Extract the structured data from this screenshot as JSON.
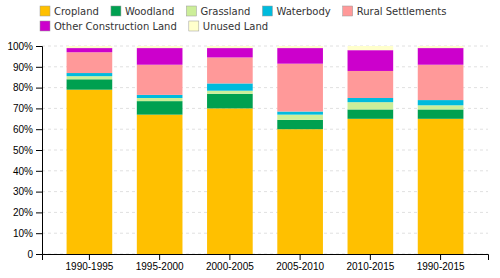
{
  "chart_data": {
    "type": "bar",
    "stacked": true,
    "categories": [
      "1990-1995",
      "1995-2000",
      "2000-2005",
      "2005-2010",
      "2010-2015",
      "1990-2015"
    ],
    "series": [
      {
        "name": "Cropland",
        "color": "#FFC000",
        "values": [
          79.0,
          67.0,
          70.0,
          60.0,
          65.0,
          65.0
        ]
      },
      {
        "name": "Woodland",
        "color": "#00A050",
        "values": [
          5.0,
          6.5,
          7.0,
          4.5,
          4.5,
          4.5
        ]
      },
      {
        "name": "Grassland",
        "color": "#CCEE99",
        "values": [
          1.5,
          1.5,
          1.5,
          2.5,
          3.5,
          2.0
        ]
      },
      {
        "name": "Waterbody",
        "color": "#00BBDD",
        "values": [
          1.5,
          1.5,
          3.5,
          1.5,
          2.0,
          2.5
        ]
      },
      {
        "name": "Rural Settlements",
        "color": "#FF9999",
        "values": [
          10.0,
          14.5,
          12.5,
          23.0,
          13.0,
          17.0
        ]
      },
      {
        "name": "Other Construction Land",
        "color": "#CC00CC",
        "values": [
          2.0,
          8.0,
          4.5,
          7.5,
          10.0,
          8.0
        ]
      },
      {
        "name": "Unused Land",
        "color": "#FFFFCC",
        "values": [
          1.0,
          1.0,
          1.0,
          1.0,
          2.0,
          1.0
        ]
      }
    ],
    "ylim": [
      0,
      100
    ],
    "yticks": [
      0,
      {
        "value": 10,
        "label": "10%"
      },
      {
        "value": 20,
        "label": "20%"
      },
      {
        "value": 30,
        "label": "30%"
      },
      {
        "value": 40,
        "label": "40%"
      },
      {
        "value": 50,
        "label": "50%"
      },
      {
        "value": 60,
        "label": "60%"
      },
      {
        "value": 70,
        "label": "70%"
      },
      {
        "value": 80,
        "label": "80%"
      },
      {
        "value": 90,
        "label": "90%"
      },
      {
        "value": 100,
        "label": "100%"
      }
    ],
    "grid": true,
    "legend": "top"
  }
}
